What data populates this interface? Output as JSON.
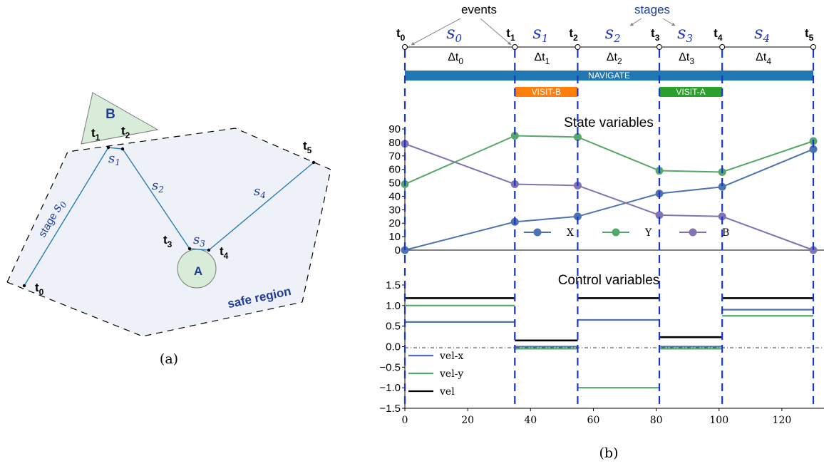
{
  "panel_a": {
    "caption": "(a)",
    "label_B": "B",
    "label_A": "A",
    "safe_region_label": "safe region",
    "stage0_label": "stage ",
    "stage_labels": [
      "s",
      "s",
      "s",
      "s",
      "s"
    ],
    "stage_subs": [
      "0",
      "1",
      "2",
      "3",
      "4"
    ],
    "time_labels": [
      "t",
      "t",
      "t",
      "t",
      "t",
      "t"
    ],
    "time_subs": [
      "0",
      "1",
      "2",
      "3",
      "4",
      "5"
    ]
  },
  "panel_b": {
    "caption": "(b)",
    "events_label": "events",
    "stages_label": "stages",
    "time_labels": [
      "t",
      "t",
      "t",
      "t",
      "t",
      "t"
    ],
    "time_subs": [
      "0",
      "1",
      "2",
      "3",
      "4",
      "5"
    ],
    "stage_letters": [
      "s",
      "s",
      "s",
      "s",
      "s"
    ],
    "stage_subs": [
      "0",
      "1",
      "2",
      "3",
      "4"
    ],
    "delta_labels": [
      "Δt",
      "Δt",
      "Δt",
      "Δt",
      "Δt"
    ],
    "delta_subs": [
      "0",
      "1",
      "2",
      "3",
      "4"
    ],
    "events_t": [
      0,
      35,
      55,
      81,
      101,
      130
    ],
    "bars": [
      {
        "label": "NAVIGATE",
        "start": 0,
        "end": 130,
        "color": "#1f77b4"
      },
      {
        "label": "VISIT-B",
        "start": 35,
        "end": 55,
        "color": "#ff7f0e"
      },
      {
        "label": "VISIT-A",
        "start": 81,
        "end": 101,
        "color": "#2ca02c"
      }
    ]
  },
  "chart_data": [
    {
      "type": "line",
      "title": "State variables",
      "x": [
        0,
        35,
        55,
        81,
        101,
        130
      ],
      "ylim": [
        0,
        90
      ],
      "xlim": [
        0,
        130
      ],
      "yticks": [
        "0",
        "10",
        "20",
        "30",
        "40",
        "50",
        "60",
        "70",
        "80",
        "90"
      ],
      "legend_position": "bottom-center",
      "series": [
        {
          "name": "X",
          "color": "#4c72b0",
          "values": [
            0,
            21,
            25,
            42,
            47,
            75
          ]
        },
        {
          "name": "Y",
          "color": "#55a868",
          "values": [
            49,
            85,
            84,
            59,
            58,
            81
          ]
        },
        {
          "name": "B",
          "color": "#8172b2",
          "values": [
            79,
            49,
            48,
            26,
            25,
            0
          ]
        }
      ]
    },
    {
      "type": "line",
      "title": "Control variables",
      "ylim": [
        -1.5,
        1.5
      ],
      "xlim": [
        0,
        130
      ],
      "xticks": [
        "0",
        "20",
        "40",
        "60",
        "80",
        "100",
        "120"
      ],
      "yticks": [
        "−1.5",
        "−1.0",
        "−0.5",
        "0.0",
        "0.5",
        "1.0",
        "1.5"
      ],
      "step_edges": [
        0,
        35,
        55,
        81,
        101,
        130
      ],
      "legend_position": "bottom-left",
      "series": [
        {
          "name": "vel-x",
          "color": "#4c72b0",
          "values": [
            0.6,
            0.0,
            0.65,
            0.0,
            0.9
          ]
        },
        {
          "name": "vel-y",
          "color": "#55a868",
          "values": [
            1.0,
            -0.05,
            -1.0,
            -0.05,
            0.75
          ]
        },
        {
          "name": "vel",
          "color": "#000000",
          "values": [
            1.18,
            0.15,
            1.18,
            0.23,
            1.18
          ]
        }
      ]
    }
  ]
}
